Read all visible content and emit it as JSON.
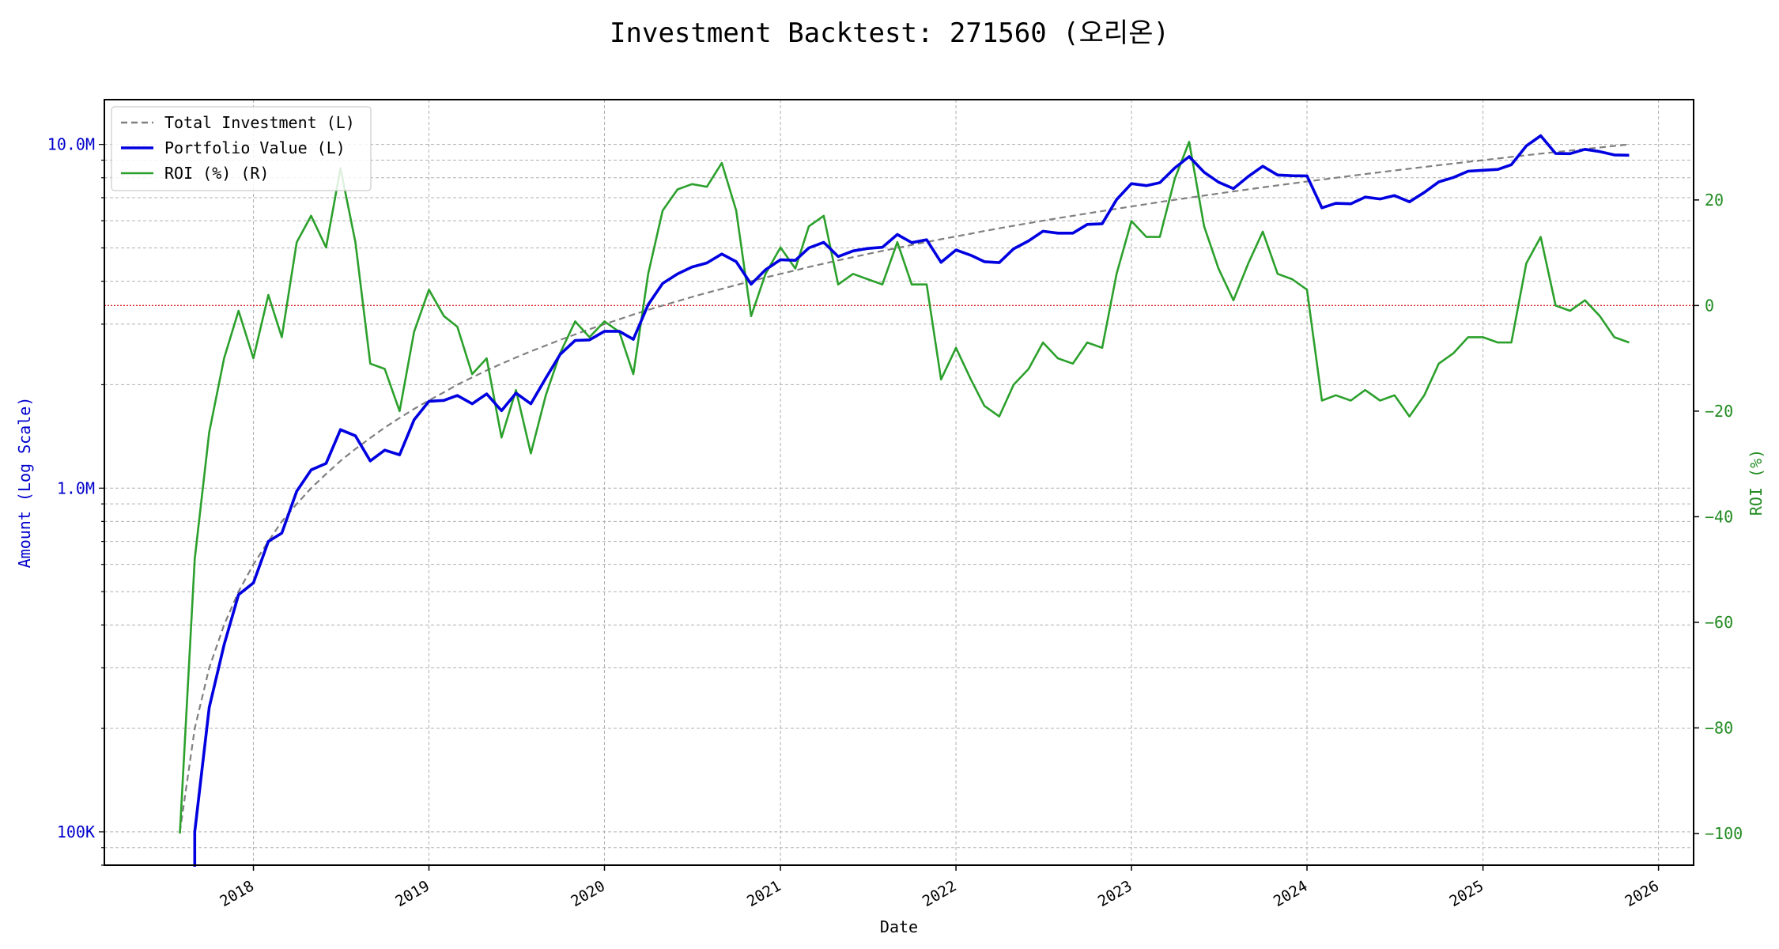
{
  "chart_data": {
    "type": "line",
    "title": "Investment Backtest: 271560 (오리온)",
    "xlabel": "Date",
    "ylabel_left": "Amount (Log Scale)",
    "ylabel_right": "ROI (%)",
    "y_left_scale": "log",
    "y_left_range": [
      80000,
      13500000
    ],
    "y_right_range": [
      -106,
      39
    ],
    "x_range": [
      "2017-02-25",
      "2026-03-15"
    ],
    "grid": true,
    "legend_position": "top-left",
    "x_ticks": [
      "2018",
      "2019",
      "2020",
      "2021",
      "2022",
      "2023",
      "2024",
      "2025",
      "2026"
    ],
    "x_tick_dates": [
      "2018-01-01",
      "2019-01-01",
      "2020-01-01",
      "2021-01-01",
      "2022-01-01",
      "2023-01-01",
      "2024-01-01",
      "2025-01-01",
      "2026-01-01"
    ],
    "y_left_ticks": [
      {
        "value": 100000,
        "label": "100K"
      },
      {
        "value": 1000000,
        "label": "1.0M"
      },
      {
        "value": 10000000,
        "label": "10.0M"
      }
    ],
    "y_right_ticks": [
      {
        "value": 20,
        "label": "20"
      },
      {
        "value": 0,
        "label": "0"
      },
      {
        "value": -20,
        "label": "−20"
      },
      {
        "value": -40,
        "label": "−40"
      },
      {
        "value": -60,
        "label": "−60"
      },
      {
        "value": -80,
        "label": "−80"
      },
      {
        "value": -100,
        "label": "−100"
      }
    ],
    "reference_line": {
      "axis": "right",
      "value": 0,
      "color": "#d62728"
    },
    "dates": [
      "2017-08-01",
      "2017-09-01",
      "2017-10-01",
      "2017-11-01",
      "2017-12-01",
      "2018-01-01",
      "2018-02-01",
      "2018-03-01",
      "2018-04-01",
      "2018-05-01",
      "2018-06-01",
      "2018-07-01",
      "2018-08-01",
      "2018-09-01",
      "2018-10-01",
      "2018-11-01",
      "2018-12-01",
      "2019-01-01",
      "2019-02-01",
      "2019-03-01",
      "2019-04-01",
      "2019-05-01",
      "2019-06-01",
      "2019-07-01",
      "2019-08-01",
      "2019-09-01",
      "2019-10-01",
      "2019-11-01",
      "2019-12-01",
      "2020-01-01",
      "2020-02-01",
      "2020-03-01",
      "2020-04-01",
      "2020-05-01",
      "2020-06-01",
      "2020-07-01",
      "2020-08-01",
      "2020-09-01",
      "2020-10-01",
      "2020-11-01",
      "2020-12-01",
      "2021-01-01",
      "2021-02-01",
      "2021-03-01",
      "2021-04-01",
      "2021-05-01",
      "2021-06-01",
      "2021-07-01",
      "2021-08-01",
      "2021-09-01",
      "2021-10-01",
      "2021-11-01",
      "2021-12-01",
      "2022-01-01",
      "2022-02-01",
      "2022-03-01",
      "2022-04-01",
      "2022-05-01",
      "2022-06-01",
      "2022-07-01",
      "2022-08-01",
      "2022-09-01",
      "2022-10-01",
      "2022-11-01",
      "2022-12-01",
      "2023-01-01",
      "2023-02-01",
      "2023-03-01",
      "2023-04-01",
      "2023-05-01",
      "2023-06-01",
      "2023-07-01",
      "2023-08-01",
      "2023-09-01",
      "2023-10-01",
      "2023-11-01",
      "2023-12-01",
      "2024-01-01",
      "2024-02-01",
      "2024-03-01",
      "2024-04-01",
      "2024-05-01",
      "2024-06-01",
      "2024-07-01",
      "2024-08-01",
      "2024-09-01",
      "2024-10-01",
      "2024-11-01",
      "2024-12-01",
      "2025-01-01",
      "2025-02-01",
      "2025-03-01",
      "2025-04-01",
      "2025-05-01",
      "2025-06-01",
      "2025-07-01",
      "2025-08-01",
      "2025-09-01",
      "2025-10-01",
      "2025-11-01"
    ],
    "series": [
      {
        "name": "Total Investment (L)",
        "axis": "left",
        "color": "#808080",
        "style": "dashed",
        "values": [
          100000,
          200000,
          300000,
          400000,
          500000,
          600000,
          700000,
          800000,
          900000,
          1000000,
          1100000,
          1200000,
          1300000,
          1400000,
          1500000,
          1600000,
          1700000,
          1800000,
          1900000,
          2000000,
          2100000,
          2200000,
          2300000,
          2400000,
          2500000,
          2600000,
          2700000,
          2800000,
          2900000,
          3000000,
          3100000,
          3200000,
          3300000,
          3400000,
          3500000,
          3600000,
          3700000,
          3800000,
          3900000,
          4000000,
          4100000,
          4200000,
          4300000,
          4400000,
          4500000,
          4600000,
          4700000,
          4800000,
          4900000,
          5000000,
          5100000,
          5200000,
          5300000,
          5400000,
          5500000,
          5600000,
          5700000,
          5800000,
          5900000,
          6000000,
          6100000,
          6200000,
          6300000,
          6400000,
          6500000,
          6600000,
          6700000,
          6800000,
          6900000,
          7000000,
          7100000,
          7200000,
          7300000,
          7400000,
          7500000,
          7600000,
          7700000,
          7800000,
          7900000,
          8000000,
          8100000,
          8200000,
          8300000,
          8400000,
          8500000,
          8600000,
          8700000,
          8800000,
          8900000,
          9000000,
          9100000,
          9200000,
          9300000,
          9400000,
          9500000,
          9600000,
          9700000,
          9800000,
          9900000,
          10000000
        ]
      },
      {
        "name": "Portfolio Value (L)",
        "axis": "left",
        "color": "#0000e0",
        "style": "solid",
        "values": [
          null,
          100000,
          230000,
          350000,
          490000,
          530000,
          700000,
          740000,
          980000,
          1130000,
          1180000,
          1480000,
          1420000,
          1200000,
          1290000,
          1250000,
          1580000,
          1790000,
          1800000,
          1860000,
          1760000,
          1880000,
          1680000,
          1890000,
          1760000,
          2090000,
          2450000,
          2690000,
          2700000,
          2860000,
          2860000,
          2710000,
          3420000,
          3940000,
          4200000,
          4400000,
          4520000,
          4800000,
          4560000,
          3920000,
          4320000,
          4620000,
          4600000,
          5000000,
          5190000,
          4720000,
          4900000,
          4980000,
          5020000,
          5470000,
          5180000,
          5280000,
          4540000,
          4930000,
          4760000,
          4560000,
          4530000,
          4970000,
          5240000,
          5590000,
          5520000,
          5520000,
          5850000,
          5880000,
          6910000,
          7690000,
          7590000,
          7740000,
          8540000,
          9220000,
          8300000,
          7770000,
          7440000,
          8070000,
          8640000,
          8150000,
          8110000,
          8100000,
          6540000,
          6740000,
          6720000,
          7030000,
          6940000,
          7100000,
          6810000,
          7250000,
          7780000,
          8020000,
          8360000,
          8410000,
          8460000,
          8730000,
          9900000,
          10600000,
          9410000,
          9400000,
          9680000,
          9530000,
          9320000,
          9300000
        ]
      },
      {
        "name": "ROI (%) (R)",
        "axis": "right",
        "color": "#2ca02c",
        "style": "solid",
        "values": [
          -100,
          -48,
          -24,
          -10,
          -1,
          -10,
          2,
          -6,
          12,
          17,
          11,
          26,
          12,
          -11,
          -12,
          -20,
          -5,
          3,
          -2,
          -4,
          -13,
          -10,
          -25,
          -16,
          -28,
          -17,
          -9,
          -3,
          -6,
          -3,
          -5,
          -13,
          6,
          18,
          22,
          23,
          22.5,
          27,
          18,
          -2,
          6,
          11,
          7,
          15,
          17,
          4,
          6,
          5,
          4,
          12,
          4,
          4,
          -14,
          -8,
          -14,
          -19,
          -21,
          -15,
          -12,
          -7,
          -10,
          -11,
          -7,
          -8,
          6,
          16,
          13,
          13,
          24,
          31,
          15,
          7,
          1,
          8,
          14,
          6,
          5,
          3,
          -18,
          -17,
          -18,
          -16,
          -18,
          -17,
          -21,
          -17,
          -11,
          -9,
          -6,
          -6,
          -7,
          -7,
          8,
          13,
          0,
          -1,
          1,
          -2,
          -6,
          -7
        ]
      }
    ]
  }
}
